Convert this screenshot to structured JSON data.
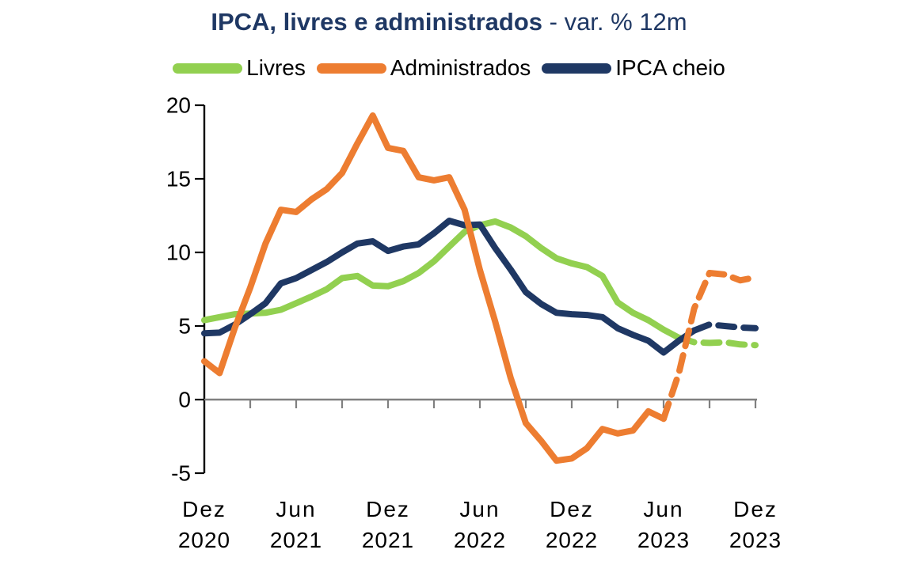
{
  "title": {
    "bold": "IPCA, livres e administrados",
    "suffix": " - var. % 12m"
  },
  "legend": [
    {
      "label": "Livres",
      "color": "#92D050"
    },
    {
      "label": "Administrados",
      "color": "#ED7D31"
    },
    {
      "label": "IPCA cheio",
      "color": "#1F3864"
    }
  ],
  "colors": {
    "title": "#1F3864",
    "axis": "#000000",
    "zero_line": "#808080",
    "text": "#000000"
  },
  "chart_data": {
    "type": "line",
    "title": "IPCA, livres e administrados - var. % 12m",
    "xlabel": "",
    "ylabel": "var. % 12m",
    "x_start": "Dez 2020",
    "x_end": "Dez 2023",
    "frequency": "monthly",
    "n_points": 37,
    "ylim": [
      -5,
      20
    ],
    "yticks": [
      20,
      15,
      10,
      5,
      0,
      -5
    ],
    "x_minor_tick_interval_months": 3,
    "x_ticks": [
      {
        "month_index": 0,
        "line1": "Dez",
        "line2": "2020"
      },
      {
        "month_index": 6,
        "line1": "Jun",
        "line2": "2021"
      },
      {
        "month_index": 12,
        "line1": "Dez",
        "line2": "2021"
      },
      {
        "month_index": 18,
        "line1": "Jun",
        "line2": "2022"
      },
      {
        "month_index": 24,
        "line1": "Dez",
        "line2": "2022"
      },
      {
        "month_index": 30,
        "line1": "Jun",
        "line2": "2023"
      },
      {
        "month_index": 36,
        "line1": "Dez",
        "line2": "2023"
      }
    ],
    "note": "dashed segments after forecast_start_index are projections",
    "series": [
      {
        "name": "Livres",
        "color": "#92D050",
        "forecast_start_index": 31,
        "values": [
          5.4,
          5.6,
          5.8,
          5.85,
          5.9,
          6.1,
          6.55,
          7.0,
          7.5,
          8.25,
          8.4,
          7.75,
          7.7,
          8.05,
          8.6,
          9.4,
          10.4,
          11.4,
          11.85,
          12.1,
          11.7,
          11.1,
          10.3,
          9.6,
          9.25,
          9.0,
          8.4,
          6.6,
          5.9,
          5.4,
          4.75,
          4.2,
          3.9,
          3.85,
          3.9,
          3.75,
          3.7
        ]
      },
      {
        "name": "IPCA cheio",
        "color": "#1F3864",
        "forecast_start_index": 32,
        "values": [
          4.5,
          4.55,
          5.1,
          5.8,
          6.55,
          7.9,
          8.25,
          8.8,
          9.35,
          10.0,
          10.6,
          10.75,
          10.1,
          10.4,
          10.55,
          11.3,
          12.15,
          11.85,
          11.9,
          10.3,
          8.85,
          7.3,
          6.5,
          5.9,
          5.8,
          5.75,
          5.6,
          4.85,
          4.4,
          4.0,
          3.2,
          4.0,
          4.7,
          5.1,
          5.0,
          4.9,
          4.85
        ]
      },
      {
        "name": "Administrados",
        "color": "#ED7D31",
        "forecast_start_index": 30,
        "values": [
          2.6,
          1.8,
          4.9,
          7.6,
          10.6,
          12.9,
          12.75,
          13.6,
          14.3,
          15.4,
          17.4,
          19.3,
          17.1,
          16.9,
          15.1,
          14.9,
          15.1,
          12.9,
          8.8,
          5.3,
          1.5,
          -1.6,
          -2.8,
          -4.15,
          -4.0,
          -3.3,
          -2.0,
          -2.3,
          -2.1,
          -0.8,
          -1.3,
          1.8,
          6.2,
          8.6,
          8.5,
          8.1,
          8.3
        ]
      }
    ]
  }
}
